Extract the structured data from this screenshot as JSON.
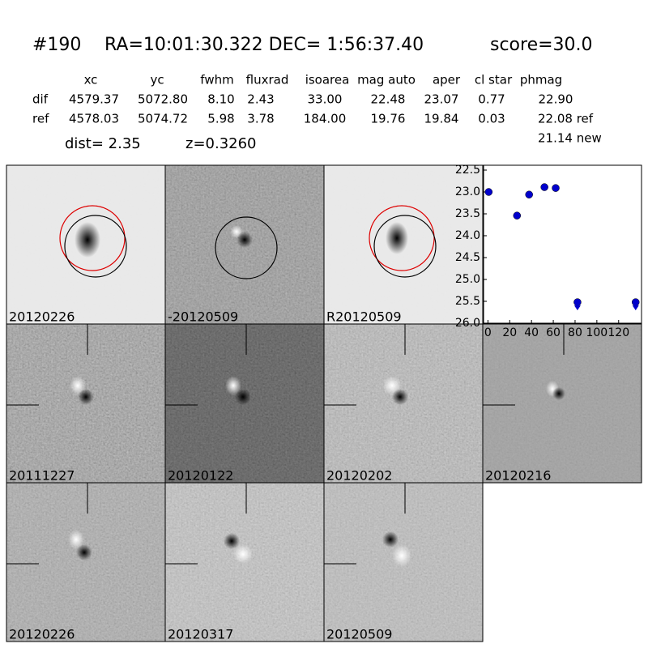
{
  "header": {
    "id": "#190",
    "coords": "RA=10:01:30.322 DEC= 1:56:37.40",
    "score": "score=30.0"
  },
  "table": {
    "columns": [
      "xc",
      "yc",
      "fwhm",
      "fluxrad",
      "isoarea",
      "mag auto",
      "aper",
      "cl star",
      "phmag"
    ],
    "rows": [
      [
        "dif",
        "4579.37",
        "5072.80",
        "8.10",
        "2.43",
        "33.00",
        "22.48",
        "23.07",
        "0.77",
        "22.90"
      ],
      [
        "ref",
        "4578.03",
        "5074.72",
        "5.98",
        "3.78",
        "184.00",
        "19.76",
        "19.84",
        "0.03",
        "22.08 ref"
      ]
    ],
    "extra": "21.14 new"
  },
  "info": {
    "dist": "dist=  2.35",
    "z": "z=0.3260"
  },
  "panels": [
    {
      "label": "20120226"
    },
    {
      "label": "-20120509"
    },
    {
      "label": "R20120509"
    },
    {
      "label": "20111227"
    },
    {
      "label": "20120122"
    },
    {
      "label": "20120202"
    },
    {
      "label": "20120216"
    },
    {
      "label": "20120226",
      "label_color": "#ff0000"
    },
    {
      "label": "20120317"
    },
    {
      "label": "20120509"
    }
  ],
  "plot": {
    "type": "scatter",
    "xlim": [
      -4,
      141
    ],
    "xticks": [
      0,
      20,
      40,
      60,
      80,
      100,
      120
    ],
    "ylim": [
      26,
      22.5
    ],
    "yticks": [
      22.5,
      {
        "value": 23,
        "label": "23.0"
      },
      23.5,
      {
        "value": 24,
        "label": "24.0"
      },
      24.5,
      {
        "value": 25,
        "label": "25.0"
      },
      25.5,
      {
        "value": 26,
        "label": "26.0"
      }
    ],
    "series": [
      {
        "color": "#0000cc",
        "marker": "circle",
        "x": [
          0.7,
          26.7,
          37.8,
          51.9,
          62.2
        ],
        "values": [
          23.0,
          23.54,
          23.06,
          22.89,
          22.91
        ]
      },
      {
        "color": "#0000cc",
        "marker": "limit",
        "x": [
          82.2,
          135.6
        ],
        "values": [
          25.52,
          25.52
        ]
      }
    ]
  }
}
